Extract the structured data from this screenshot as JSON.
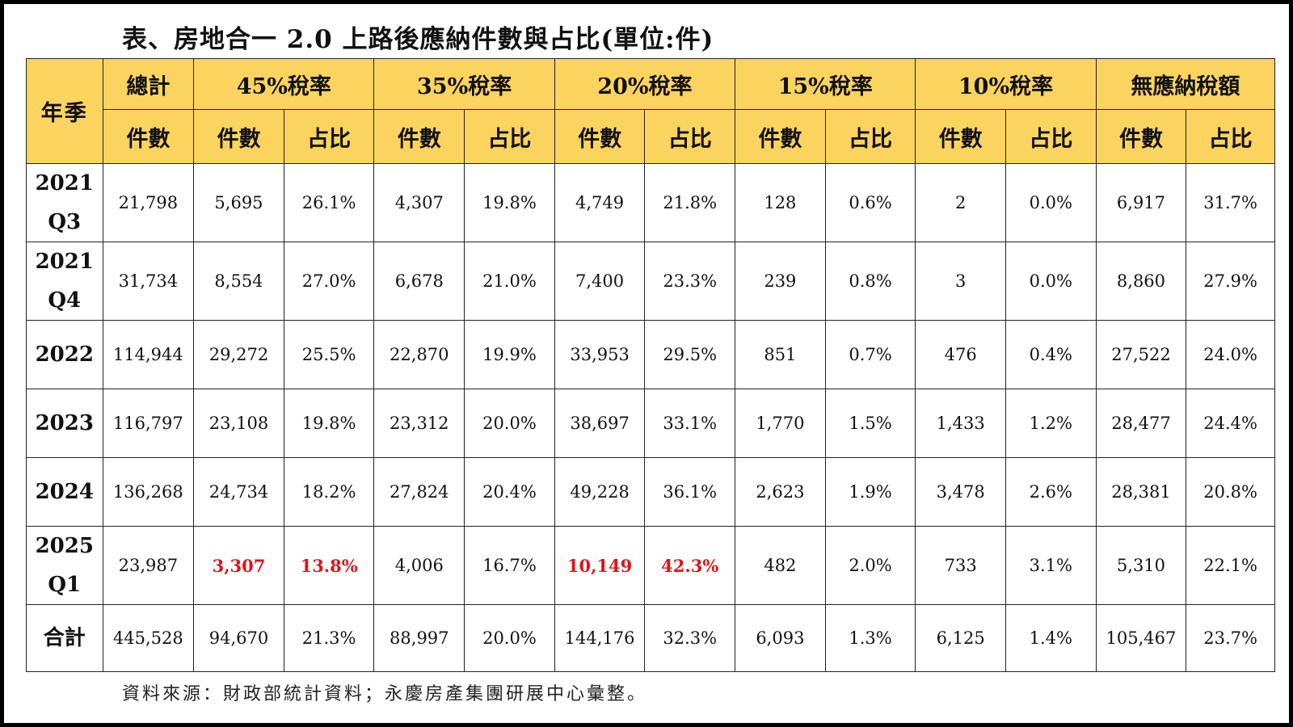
{
  "title": "表、房地合一 2.0 上路後應納件數與占比(單位:件)",
  "header": {
    "period": "年季",
    "total": "總計",
    "groups": [
      "45%稅率",
      "35%稅率",
      "20%稅率",
      "15%稅率",
      "10%稅率",
      "無應納稅額"
    ],
    "count": "件數",
    "share": "占比"
  },
  "rows": [
    {
      "label": [
        "2021",
        "Q3"
      ],
      "total": "21,798",
      "cells": [
        "5,695",
        "26.1%",
        "4,307",
        "19.8%",
        "4,749",
        "21.8%",
        "128",
        "0.6%",
        "2",
        "0.0%",
        "6,917",
        "31.7%"
      ]
    },
    {
      "label": [
        "2021",
        "Q4"
      ],
      "total": "31,734",
      "cells": [
        "8,554",
        "27.0%",
        "6,678",
        "21.0%",
        "7,400",
        "23.3%",
        "239",
        "0.8%",
        "3",
        "0.0%",
        "8,860",
        "27.9%"
      ]
    },
    {
      "label": [
        "2022"
      ],
      "total": "114,944",
      "cells": [
        "29,272",
        "25.5%",
        "22,870",
        "19.9%",
        "33,953",
        "29.5%",
        "851",
        "0.7%",
        "476",
        "0.4%",
        "27,522",
        "24.0%"
      ]
    },
    {
      "label": [
        "2023"
      ],
      "total": "116,797",
      "cells": [
        "23,108",
        "19.8%",
        "23,312",
        "20.0%",
        "38,697",
        "33.1%",
        "1,770",
        "1.5%",
        "1,433",
        "1.2%",
        "28,477",
        "24.4%"
      ]
    },
    {
      "label": [
        "2024"
      ],
      "total": "136,268",
      "cells": [
        "24,734",
        "18.2%",
        "27,824",
        "20.4%",
        "49,228",
        "36.1%",
        "2,623",
        "1.9%",
        "3,478",
        "2.6%",
        "28,381",
        "20.8%"
      ]
    },
    {
      "label": [
        "2025",
        "Q1"
      ],
      "total": "23,987",
      "cells": [
        "3,307",
        "13.8%",
        "4,006",
        "16.7%",
        "10,149",
        "42.3%",
        "482",
        "2.0%",
        "733",
        "3.1%",
        "5,310",
        "22.1%"
      ]
    },
    {
      "label": [
        "合計"
      ],
      "total": "445,528",
      "cells": [
        "94,670",
        "21.3%",
        "88,997",
        "20.0%",
        "144,176",
        "32.3%",
        "6,093",
        "1.3%",
        "6,125",
        "1.4%",
        "105,467",
        "23.7%"
      ]
    }
  ],
  "highlight_color": "#e0141a",
  "header_color": "#fbd35f",
  "source": "資料來源：財政部統計資料；永慶房產集團研展中心彙整。"
}
